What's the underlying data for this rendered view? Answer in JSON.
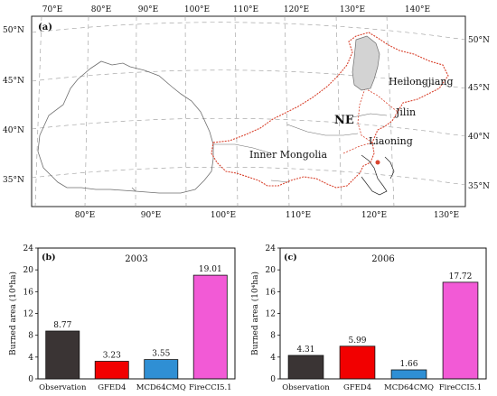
{
  "map": {
    "panel_label": "(a)",
    "top_lon_labels": [
      "70°E",
      "80°E",
      "90°E",
      "100°E",
      "110°E",
      "120°E",
      "130°E",
      "140°E"
    ],
    "bottom_lon_labels": [
      "80°E",
      "90°E",
      "100°E",
      "110°E",
      "120°E",
      "130°E"
    ],
    "left_lat_labels": [
      "50°N",
      "45°N",
      "40°N",
      "35°N"
    ],
    "right_lat_labels": [
      "50°N",
      "45°N",
      "40°N",
      "35°N"
    ],
    "region_labels": {
      "heilongjiang": "Heilongjiang",
      "jilin": "Jilin",
      "liaoning": "Liaoning",
      "inner_mongolia": "Inner Mongolia",
      "ne": "NE"
    },
    "colors": {
      "boundary": "#d9442f",
      "highlight": "#d3d3d3",
      "outline": "#6e6e6e",
      "grid": "#9a9a9a"
    }
  },
  "chart_data": [
    {
      "type": "bar",
      "panel_label": "(b)",
      "title": "2003",
      "ylabel": "Burned area (10⁴ha)",
      "ylim": [
        0,
        24
      ],
      "yticks": [
        "0",
        "4",
        "8",
        "12",
        "16",
        "20",
        "24"
      ],
      "categories": [
        "Observation",
        "GFED4",
        "MCD64CMQ",
        "FireCCI5.1"
      ],
      "values": [
        8.77,
        3.23,
        3.55,
        19.01
      ],
      "value_labels": [
        "8.77",
        "3.23",
        "3.55",
        "19.01"
      ],
      "colors": [
        "#3a3434",
        "#f20000",
        "#2f8fd4",
        "#f25ad6"
      ]
    },
    {
      "type": "bar",
      "panel_label": "(c)",
      "title": "2006",
      "ylabel": "Burned area (10⁴ha)",
      "ylim": [
        0,
        24
      ],
      "yticks": [
        "0",
        "4",
        "8",
        "12",
        "16",
        "20",
        "24"
      ],
      "categories": [
        "Observation",
        "GFED4",
        "MCD64CMQ",
        "FireCCI5.1"
      ],
      "values": [
        4.31,
        5.99,
        1.66,
        17.72
      ],
      "value_labels": [
        "4.31",
        "5.99",
        "1.66",
        "17.72"
      ],
      "colors": [
        "#3a3434",
        "#f20000",
        "#2f8fd4",
        "#f25ad6"
      ]
    }
  ]
}
